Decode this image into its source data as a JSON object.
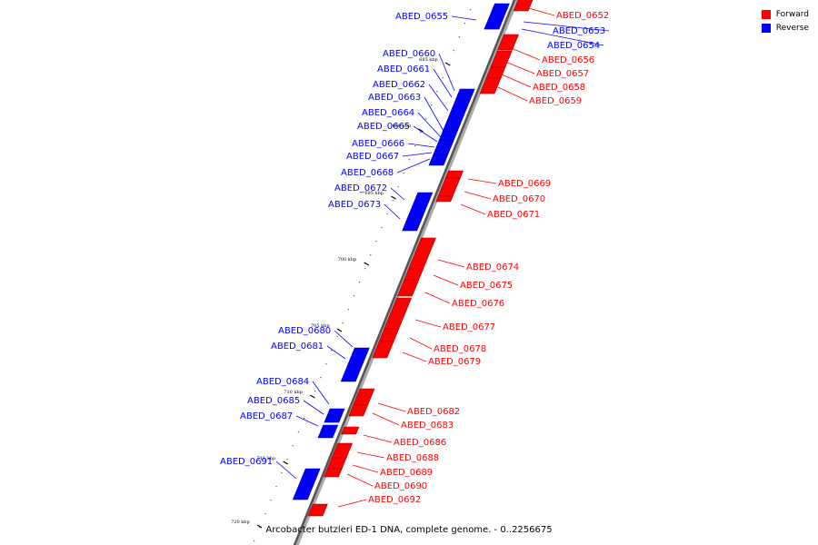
{
  "legend": {
    "forward_label": "Forward",
    "reverse_label": "Reverse",
    "forward_color": "#ff0000",
    "reverse_color": "#0000ff"
  },
  "caption": "Arcobacter butzleri ED-1 DNA, complete genome. - 0..2256675",
  "scale": {
    "unit": "kbp",
    "ticks": [
      685,
      690,
      695,
      700,
      705,
      710,
      715,
      720
    ]
  },
  "genes": [
    {
      "label": "ABED_0652",
      "strand": "forward"
    },
    {
      "label": "ABED_0653",
      "strand": "reverse"
    },
    {
      "label": "ABED_0654",
      "strand": "reverse"
    },
    {
      "label": "ABED_0655",
      "strand": "reverse"
    },
    {
      "label": "ABED_0656",
      "strand": "forward"
    },
    {
      "label": "ABED_0657",
      "strand": "forward"
    },
    {
      "label": "ABED_0658",
      "strand": "forward"
    },
    {
      "label": "ABED_0659",
      "strand": "forward"
    },
    {
      "label": "ABED_0660",
      "strand": "reverse"
    },
    {
      "label": "ABED_0661",
      "strand": "reverse"
    },
    {
      "label": "ABED_0662",
      "strand": "reverse"
    },
    {
      "label": "ABED_0663",
      "strand": "reverse"
    },
    {
      "label": "ABED_0664",
      "strand": "reverse"
    },
    {
      "label": "ABED_0665",
      "strand": "reverse"
    },
    {
      "label": "ABED_0666",
      "strand": "reverse"
    },
    {
      "label": "ABED_0667",
      "strand": "reverse"
    },
    {
      "label": "ABED_0668",
      "strand": "reverse"
    },
    {
      "label": "ABED_0669",
      "strand": "forward"
    },
    {
      "label": "ABED_0670",
      "strand": "forward"
    },
    {
      "label": "ABED_0671",
      "strand": "forward"
    },
    {
      "label": "ABED_0672",
      "strand": "reverse"
    },
    {
      "label": "ABED_0673",
      "strand": "reverse"
    },
    {
      "label": "ABED_0674",
      "strand": "forward"
    },
    {
      "label": "ABED_0675",
      "strand": "forward"
    },
    {
      "label": "ABED_0676",
      "strand": "forward"
    },
    {
      "label": "ABED_0677",
      "strand": "forward"
    },
    {
      "label": "ABED_0678",
      "strand": "forward"
    },
    {
      "label": "ABED_0679",
      "strand": "forward"
    },
    {
      "label": "ABED_0680",
      "strand": "reverse"
    },
    {
      "label": "ABED_0681",
      "strand": "reverse"
    },
    {
      "label": "ABED_0682",
      "strand": "forward"
    },
    {
      "label": "ABED_0683",
      "strand": "forward"
    },
    {
      "label": "ABED_0684",
      "strand": "reverse"
    },
    {
      "label": "ABED_0685",
      "strand": "reverse"
    },
    {
      "label": "ABED_0686",
      "strand": "forward"
    },
    {
      "label": "ABED_0687",
      "strand": "reverse"
    },
    {
      "label": "ABED_0688",
      "strand": "forward"
    },
    {
      "label": "ABED_0689",
      "strand": "forward"
    },
    {
      "label": "ABED_0690",
      "strand": "forward"
    },
    {
      "label": "ABED_0691",
      "strand": "reverse"
    },
    {
      "label": "ABED_0692",
      "strand": "forward"
    }
  ]
}
